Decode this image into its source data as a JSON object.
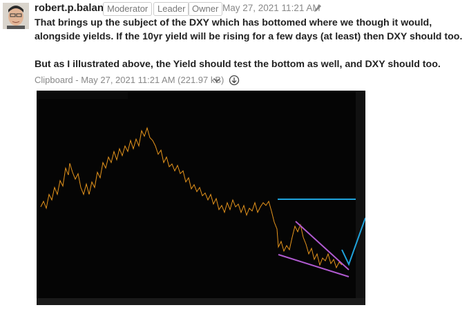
{
  "post": {
    "author": "robert.p.balan",
    "badges": [
      "Moderator",
      "Leader",
      "Owner"
    ],
    "timestamp": "May 27, 2021 11:21 AM",
    "paragraphs": [
      "That brings up the subject of the DXY which has bottomed where we though it would, alongside yields. If the 10yr yield will be rising for a few days (at least) then DXY should too.",
      "But as I illustrated above, the Yield should test the bottom as well, and DXY should too."
    ],
    "attachment": "Clipboard - May 27, 2021 11:21 AM (221.97 kB)"
  }
}
